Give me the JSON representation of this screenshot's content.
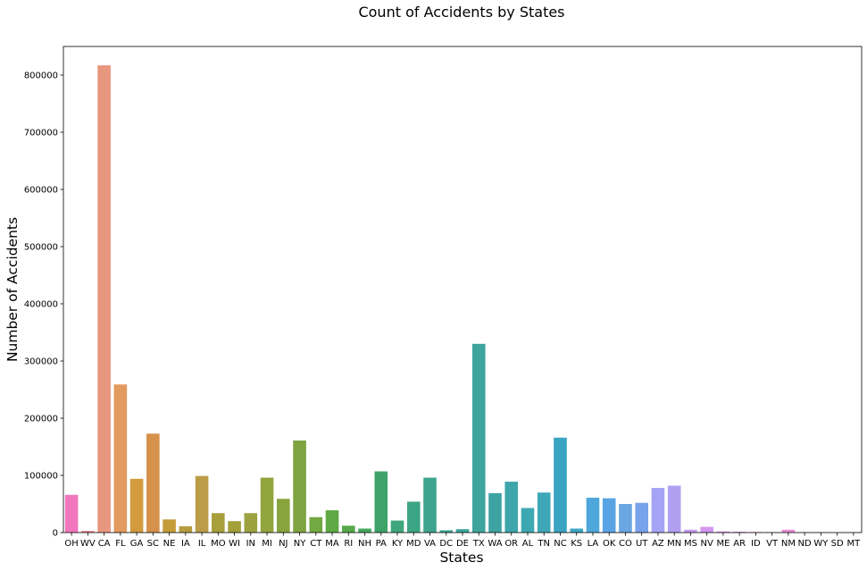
{
  "chart_data": {
    "type": "bar",
    "title": "Count of Accidents by States",
    "xlabel": "States",
    "ylabel": "Number of Accidents",
    "ylim": [
      0,
      850000
    ],
    "yticks": [
      0,
      100000,
      200000,
      300000,
      400000,
      500000,
      600000,
      700000,
      800000
    ],
    "grid": false,
    "categories": [
      "OH",
      "WV",
      "CA",
      "FL",
      "GA",
      "SC",
      "NE",
      "IA",
      "IL",
      "MO",
      "WI",
      "IN",
      "MI",
      "NJ",
      "NY",
      "CT",
      "MA",
      "RI",
      "NH",
      "PA",
      "KY",
      "MD",
      "VA",
      "DC",
      "DE",
      "TX",
      "WA",
      "OR",
      "AL",
      "TN",
      "NC",
      "KS",
      "LA",
      "OK",
      "CO",
      "UT",
      "AZ",
      "MN",
      "MS",
      "NV",
      "ME",
      "AR",
      "ID",
      "VT",
      "NM",
      "ND",
      "WY",
      "SD",
      "MT"
    ],
    "values": [
      66000,
      3000,
      817000,
      259000,
      94000,
      173000,
      23000,
      11000,
      99000,
      34000,
      20000,
      34000,
      96000,
      59000,
      161000,
      27000,
      39000,
      12000,
      7000,
      107000,
      21000,
      54000,
      96000,
      4000,
      6000,
      330000,
      69000,
      89000,
      43000,
      70000,
      166000,
      7000,
      61000,
      60000,
      50000,
      52000,
      78000,
      82000,
      5000,
      10000,
      2000,
      1500,
      1000,
      800,
      5000,
      500,
      800,
      300,
      700
    ],
    "colors": [
      "#f077be",
      "#ea8798",
      "#e9967f",
      "#e29a5f",
      "#d39a40",
      "#d6914a",
      "#c59c3a",
      "#b79c3f",
      "#bb9c48",
      "#a89f3b",
      "#a3a03a",
      "#9ba23f",
      "#92a53d",
      "#88a43d",
      "#7ea441",
      "#72a943",
      "#5ea944",
      "#56a84a",
      "#45a85b",
      "#3ea369",
      "#3ea67a",
      "#3ca584",
      "#3ea48d",
      "#3aa492",
      "#3aa69a",
      "#3ea49d",
      "#3da3a2",
      "#3ea6ab",
      "#3ea8b2",
      "#3ea8b8",
      "#3aa4c1",
      "#3ea6c5",
      "#4da7da",
      "#58a4e4",
      "#6aa6e2",
      "#78a2ea",
      "#a4a3f5",
      "#b1a0f1",
      "#c59bf2",
      "#d397ef",
      "#dc8fec",
      "#e18eec",
      "#e18ddc",
      "#e991e0",
      "#e58bd6",
      "#ea8ccd",
      "#f08ac9",
      "#f48ac2",
      "#ef8ab4"
    ]
  }
}
